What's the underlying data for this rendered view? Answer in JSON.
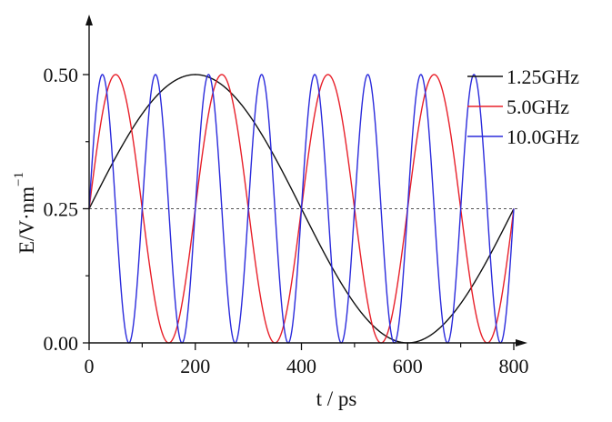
{
  "chart_data": {
    "type": "line",
    "title": "",
    "xlabel": "t / ps",
    "ylabel": "E/V·nm",
    "ylabel_superscript": "−1",
    "xlim": [
      0,
      800
    ],
    "ylim": [
      0.0,
      0.5
    ],
    "x_ticks": [
      0,
      200,
      400,
      600,
      800
    ],
    "x_tick_labels": [
      "0",
      "200",
      "400",
      "600",
      "800"
    ],
    "x_minor_ticks": [
      100,
      300,
      500,
      700
    ],
    "y_ticks": [
      0.0,
      0.25,
      0.5
    ],
    "y_tick_labels": [
      "0.00",
      "0.25",
      "0.50"
    ],
    "y_minor_ticks": [
      0.125,
      0.375
    ],
    "grid": false,
    "reference_line": {
      "y": 0.25,
      "style": "dashed",
      "color": "#555555"
    },
    "legend_position": "upper right (outside plot area)",
    "formula": "E(t) = 0.25 + 0.25·sin(2π·f·t)",
    "series": [
      {
        "name": "1.25GHz",
        "frequency_ghz": 1.25,
        "period_ps": 800,
        "color": "#111111",
        "offset": 0.25,
        "amplitude": 0.25,
        "key_points": [
          [
            0,
            0.25
          ],
          [
            200,
            0.5
          ],
          [
            400,
            0.25
          ],
          [
            600,
            0.0
          ],
          [
            800,
            0.25
          ]
        ]
      },
      {
        "name": "5.0GHz",
        "frequency_ghz": 5.0,
        "period_ps": 200,
        "color": "#e8202a",
        "offset": 0.25,
        "amplitude": 0.25,
        "key_points": [
          [
            0,
            0.25
          ],
          [
            50,
            0.5
          ],
          [
            100,
            0.25
          ],
          [
            150,
            0.0
          ],
          [
            200,
            0.25
          ],
          [
            250,
            0.5
          ],
          [
            350,
            0.0
          ],
          [
            450,
            0.5
          ],
          [
            550,
            0.0
          ],
          [
            650,
            0.5
          ],
          [
            750,
            0.0
          ],
          [
            800,
            0.25
          ]
        ]
      },
      {
        "name": "10.0GHz",
        "frequency_ghz": 10.0,
        "period_ps": 100,
        "color": "#2b2bdc",
        "offset": 0.25,
        "amplitude": 0.25,
        "key_points": [
          [
            0,
            0.25
          ],
          [
            25,
            0.5
          ],
          [
            75,
            0.0
          ],
          [
            125,
            0.5
          ],
          [
            175,
            0.0
          ],
          [
            225,
            0.5
          ],
          [
            275,
            0.0
          ],
          [
            325,
            0.5
          ],
          [
            375,
            0.0
          ],
          [
            425,
            0.5
          ],
          [
            475,
            0.0
          ],
          [
            525,
            0.5
          ],
          [
            575,
            0.0
          ],
          [
            625,
            0.5
          ],
          [
            675,
            0.0
          ],
          [
            725,
            0.5
          ],
          [
            775,
            0.0
          ],
          [
            800,
            0.25
          ]
        ]
      }
    ]
  }
}
